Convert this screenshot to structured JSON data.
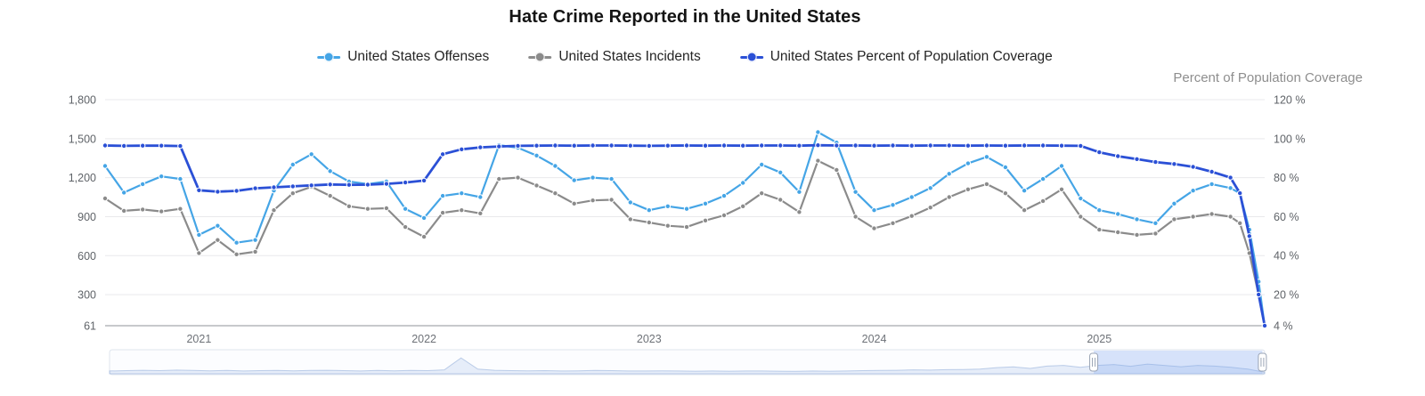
{
  "chart_data": {
    "type": "line",
    "title": "Hate Crime Reported in the United States",
    "legend_position": "top-center",
    "grid": true,
    "x": [
      2020.583,
      2020.667,
      2020.75,
      2020.833,
      2020.917,
      2021.0,
      2021.083,
      2021.167,
      2021.25,
      2021.333,
      2021.417,
      2021.5,
      2021.583,
      2021.667,
      2021.75,
      2021.833,
      2021.917,
      2022.0,
      2022.083,
      2022.167,
      2022.25,
      2022.333,
      2022.417,
      2022.5,
      2022.583,
      2022.667,
      2022.75,
      2022.833,
      2022.917,
      2023.0,
      2023.083,
      2023.167,
      2023.25,
      2023.333,
      2023.417,
      2023.5,
      2023.583,
      2023.667,
      2023.75,
      2023.833,
      2023.917,
      2024.0,
      2024.083,
      2024.167,
      2024.25,
      2024.333,
      2024.417,
      2024.5,
      2024.583,
      2024.667,
      2024.75,
      2024.833,
      2024.917,
      2025.0,
      2025.083,
      2025.167,
      2025.25,
      2025.333,
      2025.417,
      2025.5,
      2025.583,
      2025.625,
      2025.667,
      2025.708,
      2025.735
    ],
    "series": [
      {
        "name": "United States Offenses",
        "color": "#45a5e6",
        "axis": "left",
        "values": [
          1290,
          1085,
          1150,
          1210,
          1190,
          760,
          830,
          700,
          720,
          1100,
          1300,
          1380,
          1250,
          1170,
          1150,
          1170,
          960,
          890,
          1060,
          1080,
          1050,
          1450,
          1430,
          1370,
          1290,
          1180,
          1200,
          1190,
          1010,
          950,
          980,
          960,
          1000,
          1060,
          1160,
          1300,
          1240,
          1090,
          1550,
          1470,
          1090,
          950,
          990,
          1050,
          1120,
          1230,
          1310,
          1360,
          1280,
          1100,
          1190,
          1290,
          1040,
          950,
          920,
          880,
          850,
          1000,
          1100,
          1150,
          1120,
          1080,
          800,
          400,
          61
        ]
      },
      {
        "name": "United States Incidents",
        "color": "#8b8b8b",
        "axis": "left",
        "values": [
          1040,
          945,
          955,
          940,
          960,
          620,
          720,
          610,
          630,
          950,
          1080,
          1130,
          1060,
          980,
          960,
          965,
          820,
          745,
          930,
          950,
          925,
          1190,
          1200,
          1140,
          1080,
          1000,
          1025,
          1030,
          880,
          855,
          830,
          820,
          870,
          910,
          980,
          1080,
          1030,
          935,
          1330,
          1260,
          900,
          810,
          850,
          905,
          970,
          1050,
          1110,
          1150,
          1080,
          950,
          1020,
          1110,
          900,
          800,
          780,
          760,
          770,
          880,
          900,
          920,
          900,
          850,
          620,
          300,
          61
        ]
      },
      {
        "name": "United States Percent of Population Coverage",
        "color": "#2b50d6",
        "axis": "right",
        "values": [
          96.5,
          96.3,
          96.4,
          96.4,
          96.2,
          73.5,
          72.8,
          73.2,
          74.5,
          75.0,
          75.5,
          76.0,
          76.5,
          76.3,
          76.4,
          76.8,
          77.5,
          78.5,
          92.0,
          94.5,
          95.5,
          96.0,
          96.3,
          96.4,
          96.5,
          96.4,
          96.5,
          96.5,
          96.4,
          96.3,
          96.4,
          96.5,
          96.4,
          96.5,
          96.4,
          96.5,
          96.5,
          96.4,
          96.6,
          96.5,
          96.5,
          96.4,
          96.5,
          96.4,
          96.5,
          96.5,
          96.4,
          96.5,
          96.4,
          96.5,
          96.5,
          96.4,
          96.3,
          93.0,
          91.0,
          89.5,
          88.0,
          87.0,
          85.5,
          83.0,
          80.0,
          72.0,
          50.0,
          20.0,
          4.0
        ]
      }
    ],
    "left_axis": {
      "min": 61,
      "max": 1800,
      "ticks": [
        61,
        300,
        600,
        900,
        1200,
        1500,
        1800
      ],
      "labels": [
        "61",
        "300",
        "600",
        "900",
        "1,200",
        "1,500",
        "1,800"
      ]
    },
    "right_axis": {
      "title": "Percent of Population Coverage",
      "min": 4,
      "max": 120,
      "ticks": [
        4,
        20,
        40,
        60,
        80,
        100,
        120
      ],
      "labels": [
        "4 %",
        "20 %",
        "40 %",
        "60 %",
        "80 %",
        "100 %",
        "120 %"
      ]
    },
    "x_axis": {
      "ticks": [
        2021,
        2022,
        2023,
        2024,
        2025
      ],
      "labels": [
        "2021",
        "2022",
        "2023",
        "2024",
        "2025"
      ]
    },
    "navigator": {
      "selection": [
        0.852,
        0.998
      ],
      "values": [
        0.1,
        0.12,
        0.14,
        0.12,
        0.15,
        0.13,
        0.11,
        0.13,
        0.1,
        0.12,
        0.13,
        0.11,
        0.13,
        0.14,
        0.12,
        0.1,
        0.13,
        0.11,
        0.13,
        0.12,
        0.16,
        0.8,
        0.2,
        0.14,
        0.12,
        0.11,
        0.12,
        0.1,
        0.11,
        0.13,
        0.12,
        0.1,
        0.1,
        0.11,
        0.1,
        0.09,
        0.1,
        0.09,
        0.1,
        0.1,
        0.09,
        0.08,
        0.1,
        0.09,
        0.1,
        0.12,
        0.13,
        0.14,
        0.16,
        0.15,
        0.17,
        0.18,
        0.2,
        0.28,
        0.32,
        0.24,
        0.36,
        0.4,
        0.3,
        0.4,
        0.45,
        0.35,
        0.47,
        0.4,
        0.33,
        0.4,
        0.36,
        0.3,
        0.2,
        0.03
      ]
    }
  }
}
